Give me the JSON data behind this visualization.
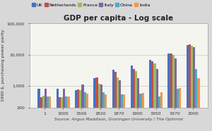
{
  "title": "GDP per capita - Log scale",
  "source_label": "Source: Angus Maddison, Groningen University / The Optimist",
  "ylabel": "1990 $, purchasing power parity",
  "categories": [
    "1",
    "1000",
    "1500",
    "1820",
    "1870",
    "1900",
    "1950",
    "1970",
    "2000"
  ],
  "series": {
    "UK": [
      800,
      800,
      714,
      1706,
      3190,
      4492,
      6907,
      10767,
      19817
    ],
    "Netherlands": [
      425,
      425,
      761,
      1838,
      2757,
      3533,
      5996,
      10839,
      21835
    ],
    "France": [
      473,
      425,
      727,
      1135,
      1876,
      2876,
      5186,
      9872,
      19558
    ],
    "Italy": [
      809,
      809,
      1100,
      1117,
      1499,
      1785,
      3502,
      7432,
      17759
    ],
    "China": [
      450,
      450,
      600,
      600,
      530,
      545,
      439,
      778,
      3425
    ],
    "India": [
      450,
      450,
      550,
      533,
      533,
      599,
      619,
      853,
      1746
    ]
  },
  "colors": {
    "UK": "#4472C4",
    "Netherlands": "#C0504D",
    "France": "#9BBB59",
    "Italy": "#8064A2",
    "China": "#4BACC6",
    "India": "#F79646"
  },
  "ylim": [
    200,
    100000
  ],
  "yticks": [
    200,
    1000,
    10000,
    100000
  ],
  "ytick_labels": [
    "200",
    "1,000",
    "10,000",
    "100,000"
  ],
  "legend_order": [
    "UK",
    "Netherlands",
    "France",
    "Italy",
    "China",
    "India"
  ],
  "background_color": "#D8D8D8",
  "plot_bg_color": "#F5F5F0",
  "title_fontsize": 7.5,
  "ylabel_fontsize": 4.5,
  "source_fontsize": 4.2,
  "legend_fontsize": 4.5,
  "tick_fontsize": 4.5,
  "bar_width": 0.12
}
